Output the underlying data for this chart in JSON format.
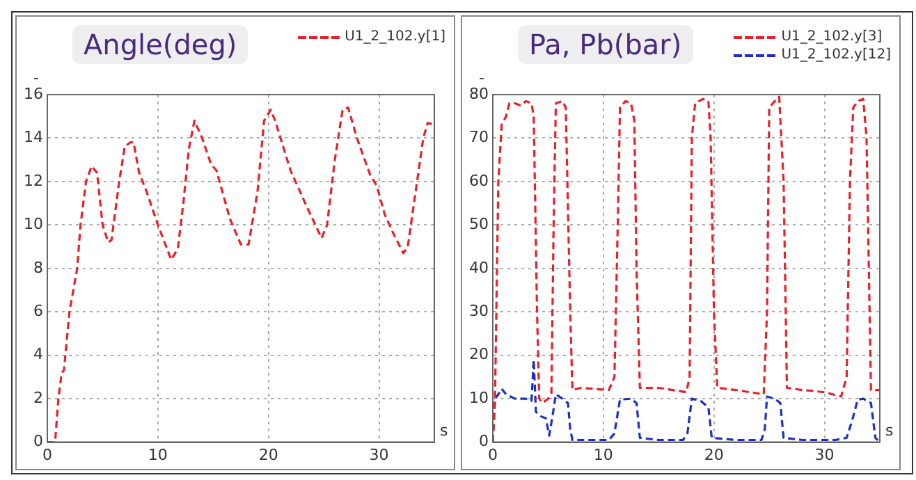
{
  "chart_data": [
    {
      "type": "line",
      "title": "Angle(deg)",
      "xlabel": "s",
      "ylabel": "-",
      "xlim": [
        0,
        35
      ],
      "xticks": [
        0,
        10,
        20,
        30
      ],
      "ylim": [
        0,
        16
      ],
      "yticks": [
        0,
        2,
        4,
        6,
        8,
        10,
        12,
        14,
        16
      ],
      "grid": true,
      "legend": "top right",
      "marker": "none",
      "line_style": "dashed",
      "series": [
        {
          "name": "U1_2_102.y[1]",
          "color": "#e8202a",
          "x": [
            0,
            0.7,
            1,
            1.3,
            1.5,
            2,
            2.7,
            3,
            3.5,
            4,
            4.5,
            5,
            5.5,
            5.8,
            6.5,
            7,
            7.5,
            7.8,
            8.3,
            9,
            10,
            11.2,
            11.8,
            12.3,
            12.8,
            13.3,
            14,
            14.8,
            15.3,
            16.5,
            17.5,
            18.2,
            19,
            19.6,
            20.2,
            20.6,
            22,
            23.5,
            24.8,
            25.3,
            26,
            26.7,
            27.2,
            28,
            29.2,
            29.8,
            30.5,
            31.3,
            32.2,
            32.6,
            33.3,
            34,
            34.4,
            35
          ],
          "values": [
            0,
            0,
            2,
            3.2,
            3.3,
            6,
            8,
            10,
            12,
            12.7,
            12.4,
            10,
            9.2,
            9.3,
            12,
            13.6,
            13.8,
            13.8,
            12.4,
            11.5,
            10,
            8.4,
            8.9,
            11,
            13.5,
            14.8,
            14,
            12.8,
            12.5,
            10.3,
            9.1,
            9.1,
            11.5,
            14.8,
            15.3,
            14.8,
            12.5,
            10.8,
            9.4,
            10,
            13,
            15.3,
            15.4,
            14,
            12.3,
            11.8,
            10.5,
            9.6,
            8.7,
            9,
            11.5,
            14,
            14.7,
            14.6
          ]
        }
      ]
    },
    {
      "type": "line",
      "title": "Pa, Pb(bar)",
      "xlabel": "s",
      "ylabel": "-",
      "xlim": [
        0,
        35
      ],
      "xticks": [
        0,
        10,
        20,
        30
      ],
      "ylim": [
        0,
        80
      ],
      "yticks": [
        0,
        10,
        20,
        30,
        40,
        50,
        60,
        70,
        80
      ],
      "grid": true,
      "legend": "top right",
      "marker": "none",
      "line_style": "dashed",
      "series": [
        {
          "name": "U1_2_102.y[3]",
          "color": "#e8202a",
          "x": [
            0,
            0.2,
            0.5,
            0.8,
            1.2,
            1.5,
            2,
            2.5,
            3,
            3.5,
            3.7,
            4,
            4.2,
            4.5,
            5,
            5.3,
            5.5,
            5.7,
            6.3,
            6.6,
            7,
            7.2,
            8,
            10.5,
            11,
            11.3,
            11.5,
            12,
            12.5,
            12.8,
            13,
            13.3,
            15,
            17.5,
            17.8,
            18,
            18.3,
            19,
            19.5,
            19.7,
            20,
            20.3,
            22,
            24.5,
            24.8,
            25,
            25.5,
            25.9,
            26.3,
            26.6,
            28,
            30,
            31.5,
            32,
            32.3,
            32.6,
            33,
            33.5,
            33.8,
            34.2,
            35
          ],
          "values": [
            0,
            10,
            60,
            73,
            75,
            78,
            78,
            77.5,
            78.5,
            78,
            75,
            30,
            10,
            9,
            10,
            11,
            50,
            78,
            78.5,
            77,
            30,
            12,
            12.5,
            12,
            15,
            50,
            77,
            78.5,
            78,
            74,
            40,
            12.5,
            12.5,
            11.5,
            15,
            70,
            78,
            79,
            78.5,
            70,
            30,
            12.5,
            12,
            11,
            30,
            77,
            78.5,
            79.5,
            60,
            12.5,
            12,
            11.5,
            10.5,
            15,
            60,
            77,
            78.5,
            79,
            70,
            12,
            12
          ]
        },
        {
          "name": "U1_2_102.y[12]",
          "color": "#1c2fc4",
          "x": [
            0,
            0.2,
            0.5,
            0.8,
            1.2,
            2,
            3,
            3.5,
            3.7,
            3.9,
            4.3,
            4.8,
            5.1,
            5.4,
            5.7,
            6.3,
            6.8,
            7,
            7.2,
            10.5,
            11,
            11.5,
            12.5,
            13,
            13.3,
            15,
            17.2,
            17.6,
            18,
            18.8,
            19.5,
            19.8,
            22,
            24.3,
            24.6,
            24.8,
            25.5,
            26,
            26.3,
            28,
            31,
            32,
            32.5,
            33,
            33.5,
            34.2,
            34.6,
            35
          ],
          "values": [
            0,
            10,
            11,
            12.3,
            11,
            10,
            10,
            9.5,
            19,
            7,
            6,
            5.5,
            1.5,
            6,
            11,
            10,
            9,
            3,
            0.5,
            0.5,
            2,
            9.8,
            10,
            9,
            1,
            0.5,
            0.5,
            2,
            10,
            9.5,
            8,
            1,
            0.5,
            0.5,
            3,
            10.5,
            10,
            9,
            1,
            0.5,
            0.5,
            1,
            5,
            9.8,
            10,
            9,
            1,
            0
          ]
        }
      ]
    }
  ]
}
